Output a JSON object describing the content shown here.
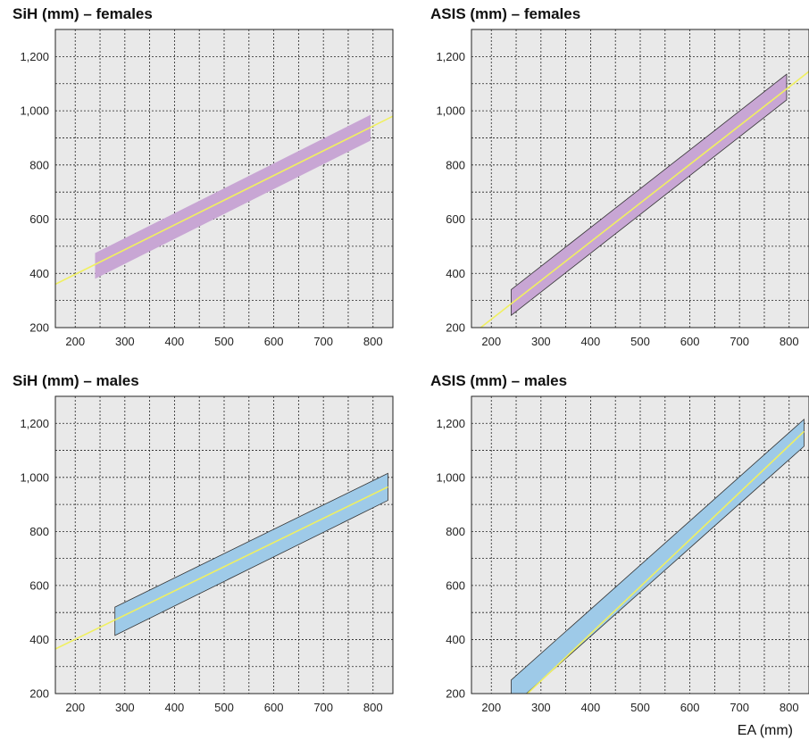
{
  "x_axis_label": "EA (mm)",
  "chart_data": [
    {
      "type": "line",
      "title": "SiH (mm) – females",
      "xlim": [
        160,
        840
      ],
      "ylim": [
        200,
        1300
      ],
      "x_ticks": [
        200,
        300,
        400,
        500,
        600,
        700,
        800
      ],
      "y_ticks": [
        200,
        400,
        600,
        800,
        1000,
        1200
      ],
      "y_tick_labels": [
        "200",
        "400",
        "600",
        "800",
        "1,000",
        "1,200"
      ],
      "x_tick_labels": [
        "200",
        "300",
        "400",
        "500",
        "600",
        "700",
        "800"
      ],
      "grid": true,
      "band_color": "#c8a6d4",
      "band_stroke": "none",
      "line_color": "#f0f060",
      "regression": [
        [
          160,
          360
        ],
        [
          840,
          980
        ]
      ],
      "band": {
        "x": [
          240,
          795
        ],
        "upper": [
          475,
          985
        ],
        "lower": [
          380,
          890
        ]
      }
    },
    {
      "type": "line",
      "title": "ASIS (mm) – females",
      "xlim": [
        160,
        840
      ],
      "ylim": [
        200,
        1300
      ],
      "x_ticks": [
        200,
        300,
        400,
        500,
        600,
        700,
        800
      ],
      "y_ticks": [
        200,
        400,
        600,
        800,
        1000,
        1200
      ],
      "y_tick_labels": [
        "200",
        "400",
        "600",
        "800",
        "1,000",
        "1,200"
      ],
      "x_tick_labels": [
        "200",
        "300",
        "400",
        "500",
        "600",
        "700",
        "800"
      ],
      "grid": true,
      "band_color": "#c8a6d4",
      "band_stroke": "#333333",
      "line_color": "#f0f060",
      "regression": [
        [
          175,
          195
        ],
        [
          840,
          1145
        ]
      ],
      "band": {
        "x": [
          240,
          795
        ],
        "upper": [
          340,
          1135
        ],
        "lower": [
          245,
          1040
        ]
      }
    },
    {
      "type": "line",
      "title": "SiH (mm) – males",
      "xlim": [
        160,
        840
      ],
      "ylim": [
        200,
        1300
      ],
      "x_ticks": [
        200,
        300,
        400,
        500,
        600,
        700,
        800
      ],
      "y_ticks": [
        200,
        400,
        600,
        800,
        1000,
        1200
      ],
      "y_tick_labels": [
        "200",
        "400",
        "600",
        "800",
        "1,000",
        "1,200"
      ],
      "x_tick_labels": [
        "200",
        "300",
        "400",
        "500",
        "600",
        "700",
        "800"
      ],
      "grid": true,
      "band_color": "#9ecae8",
      "band_stroke": "#333333",
      "line_color": "#f0f060",
      "regression": [
        [
          160,
          365
        ],
        [
          830,
          965
        ]
      ],
      "band": {
        "x": [
          280,
          830
        ],
        "upper": [
          520,
          1015
        ],
        "lower": [
          415,
          915
        ]
      }
    },
    {
      "type": "line",
      "title": "ASIS (mm) – males",
      "xlim": [
        160,
        840
      ],
      "ylim": [
        200,
        1300
      ],
      "x_ticks": [
        200,
        300,
        400,
        500,
        600,
        700,
        800
      ],
      "y_ticks": [
        200,
        400,
        600,
        800,
        1000,
        1200
      ],
      "y_tick_labels": [
        "200",
        "400",
        "600",
        "800",
        "1,000",
        "1,200"
      ],
      "x_tick_labels": [
        "200",
        "300",
        "400",
        "500",
        "600",
        "700",
        "800"
      ],
      "grid": true,
      "band_color": "#9ecae8",
      "band_stroke": "#333333",
      "line_color": "#f0f060",
      "regression": [
        [
          270,
          195
        ],
        [
          830,
          1170
        ]
      ],
      "band": {
        "x": [
          240,
          830
        ],
        "upper": [
          250,
          1215
        ],
        "lower": [
          150,
          1115
        ]
      }
    }
  ]
}
